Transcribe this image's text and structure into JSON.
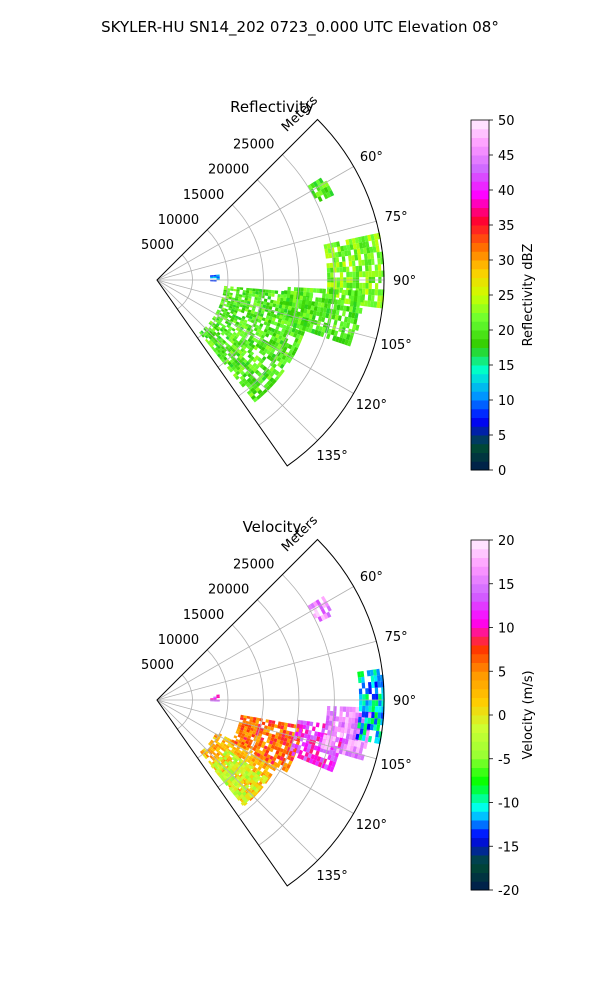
{
  "figure": {
    "title": "SKYLER-HU  SN14_202  0723_0.000 UTC Elevation 08°"
  },
  "chart_data": [
    {
      "type": "heatmap",
      "projection": "polar-sector",
      "title": "Reflectivity",
      "range_label": "Meters",
      "range_ticks": [
        5000,
        10000,
        15000,
        20000,
        25000
      ],
      "range_max": 32000,
      "azimuth_range_deg": [
        45,
        145
      ],
      "azimuth_tick_labels": [
        {
          "deg": 60,
          "label": "60°"
        },
        {
          "deg": 75,
          "label": "75°"
        },
        {
          "deg": 90,
          "label": "90°"
        },
        {
          "deg": 105,
          "label": "105°"
        },
        {
          "deg": 120,
          "label": "120°"
        },
        {
          "deg": 135,
          "label": "135°"
        }
      ],
      "grid": true,
      "colorbar": {
        "label": "Reflectivity dBZ",
        "min": 0,
        "max": 50,
        "ticks": [
          0,
          5,
          10,
          15,
          20,
          25,
          30,
          35,
          40,
          45,
          50
        ],
        "colors": [
          "#001a4d",
          "#004d33",
          "#0000ff",
          "#0099ff",
          "#00ffcc",
          "#33cc00",
          "#66ff33",
          "#ccff00",
          "#ffcc00",
          "#ff6600",
          "#ff0033",
          "#ff00ff",
          "#cc66ff",
          "#ff99ff",
          "#fff0ff"
        ]
      },
      "echo_regions": [
        {
          "az": [
            95,
            140
          ],
          "r": [
            9500,
            22000
          ],
          "value": 20
        },
        {
          "az": [
            78,
            96
          ],
          "r": [
            24000,
            32000
          ],
          "value": 22
        },
        {
          "az": [
            93,
            108
          ],
          "r": [
            18000,
            29000
          ],
          "value": 20
        },
        {
          "az": [
            85,
            90
          ],
          "r": [
            7500,
            8800
          ],
          "value": 10
        },
        {
          "az": [
            58,
            63
          ],
          "r": [
            25000,
            27500
          ],
          "value": 20
        }
      ]
    },
    {
      "type": "heatmap",
      "projection": "polar-sector",
      "title": "Velocity",
      "range_label": "Meters",
      "range_ticks": [
        5000,
        10000,
        15000,
        20000,
        25000
      ],
      "range_max": 32000,
      "azimuth_range_deg": [
        45,
        145
      ],
      "azimuth_tick_labels": [
        {
          "deg": 60,
          "label": "60°"
        },
        {
          "deg": 75,
          "label": "75°"
        },
        {
          "deg": 90,
          "label": "90°"
        },
        {
          "deg": 105,
          "label": "105°"
        },
        {
          "deg": 120,
          "label": "120°"
        },
        {
          "deg": 135,
          "label": "135°"
        }
      ],
      "grid": true,
      "colorbar": {
        "label": "Velocity (m/s)",
        "min": -20,
        "max": 20,
        "ticks": [
          -20,
          -15,
          -10,
          -5,
          0,
          5,
          10,
          15,
          20
        ],
        "colors": [
          "#001a4d",
          "#004d33",
          "#0000ff",
          "#00ffff",
          "#00ff00",
          "#99ff33",
          "#ccff33",
          "#ffcc00",
          "#ff9900",
          "#ff3300",
          "#ff00ff",
          "#cc66ff",
          "#ff99ff",
          "#fff0ff"
        ]
      },
      "echo_regions": [
        {
          "az": [
            118,
            140
          ],
          "r": [
            9500,
            19000
          ],
          "value": 3
        },
        {
          "az": [
            125,
            140
          ],
          "r": [
            12000,
            19000
          ],
          "value": -2
        },
        {
          "az": [
            100,
            118
          ],
          "r": [
            12000,
            21000
          ],
          "value": 6
        },
        {
          "az": [
            98,
            112
          ],
          "r": [
            20000,
            26500
          ],
          "value": 12
        },
        {
          "az": [
            92,
            105
          ],
          "r": [
            24000,
            30000
          ],
          "value": 16
        },
        {
          "az": [
            82,
            100
          ],
          "r": [
            28500,
            32000
          ],
          "value": -11
        },
        {
          "az": [
            85,
            90
          ],
          "r": [
            7500,
            8800
          ],
          "value": 12
        },
        {
          "az": [
            58,
            63
          ],
          "r": [
            25000,
            27500
          ],
          "value": 16
        }
      ]
    }
  ]
}
